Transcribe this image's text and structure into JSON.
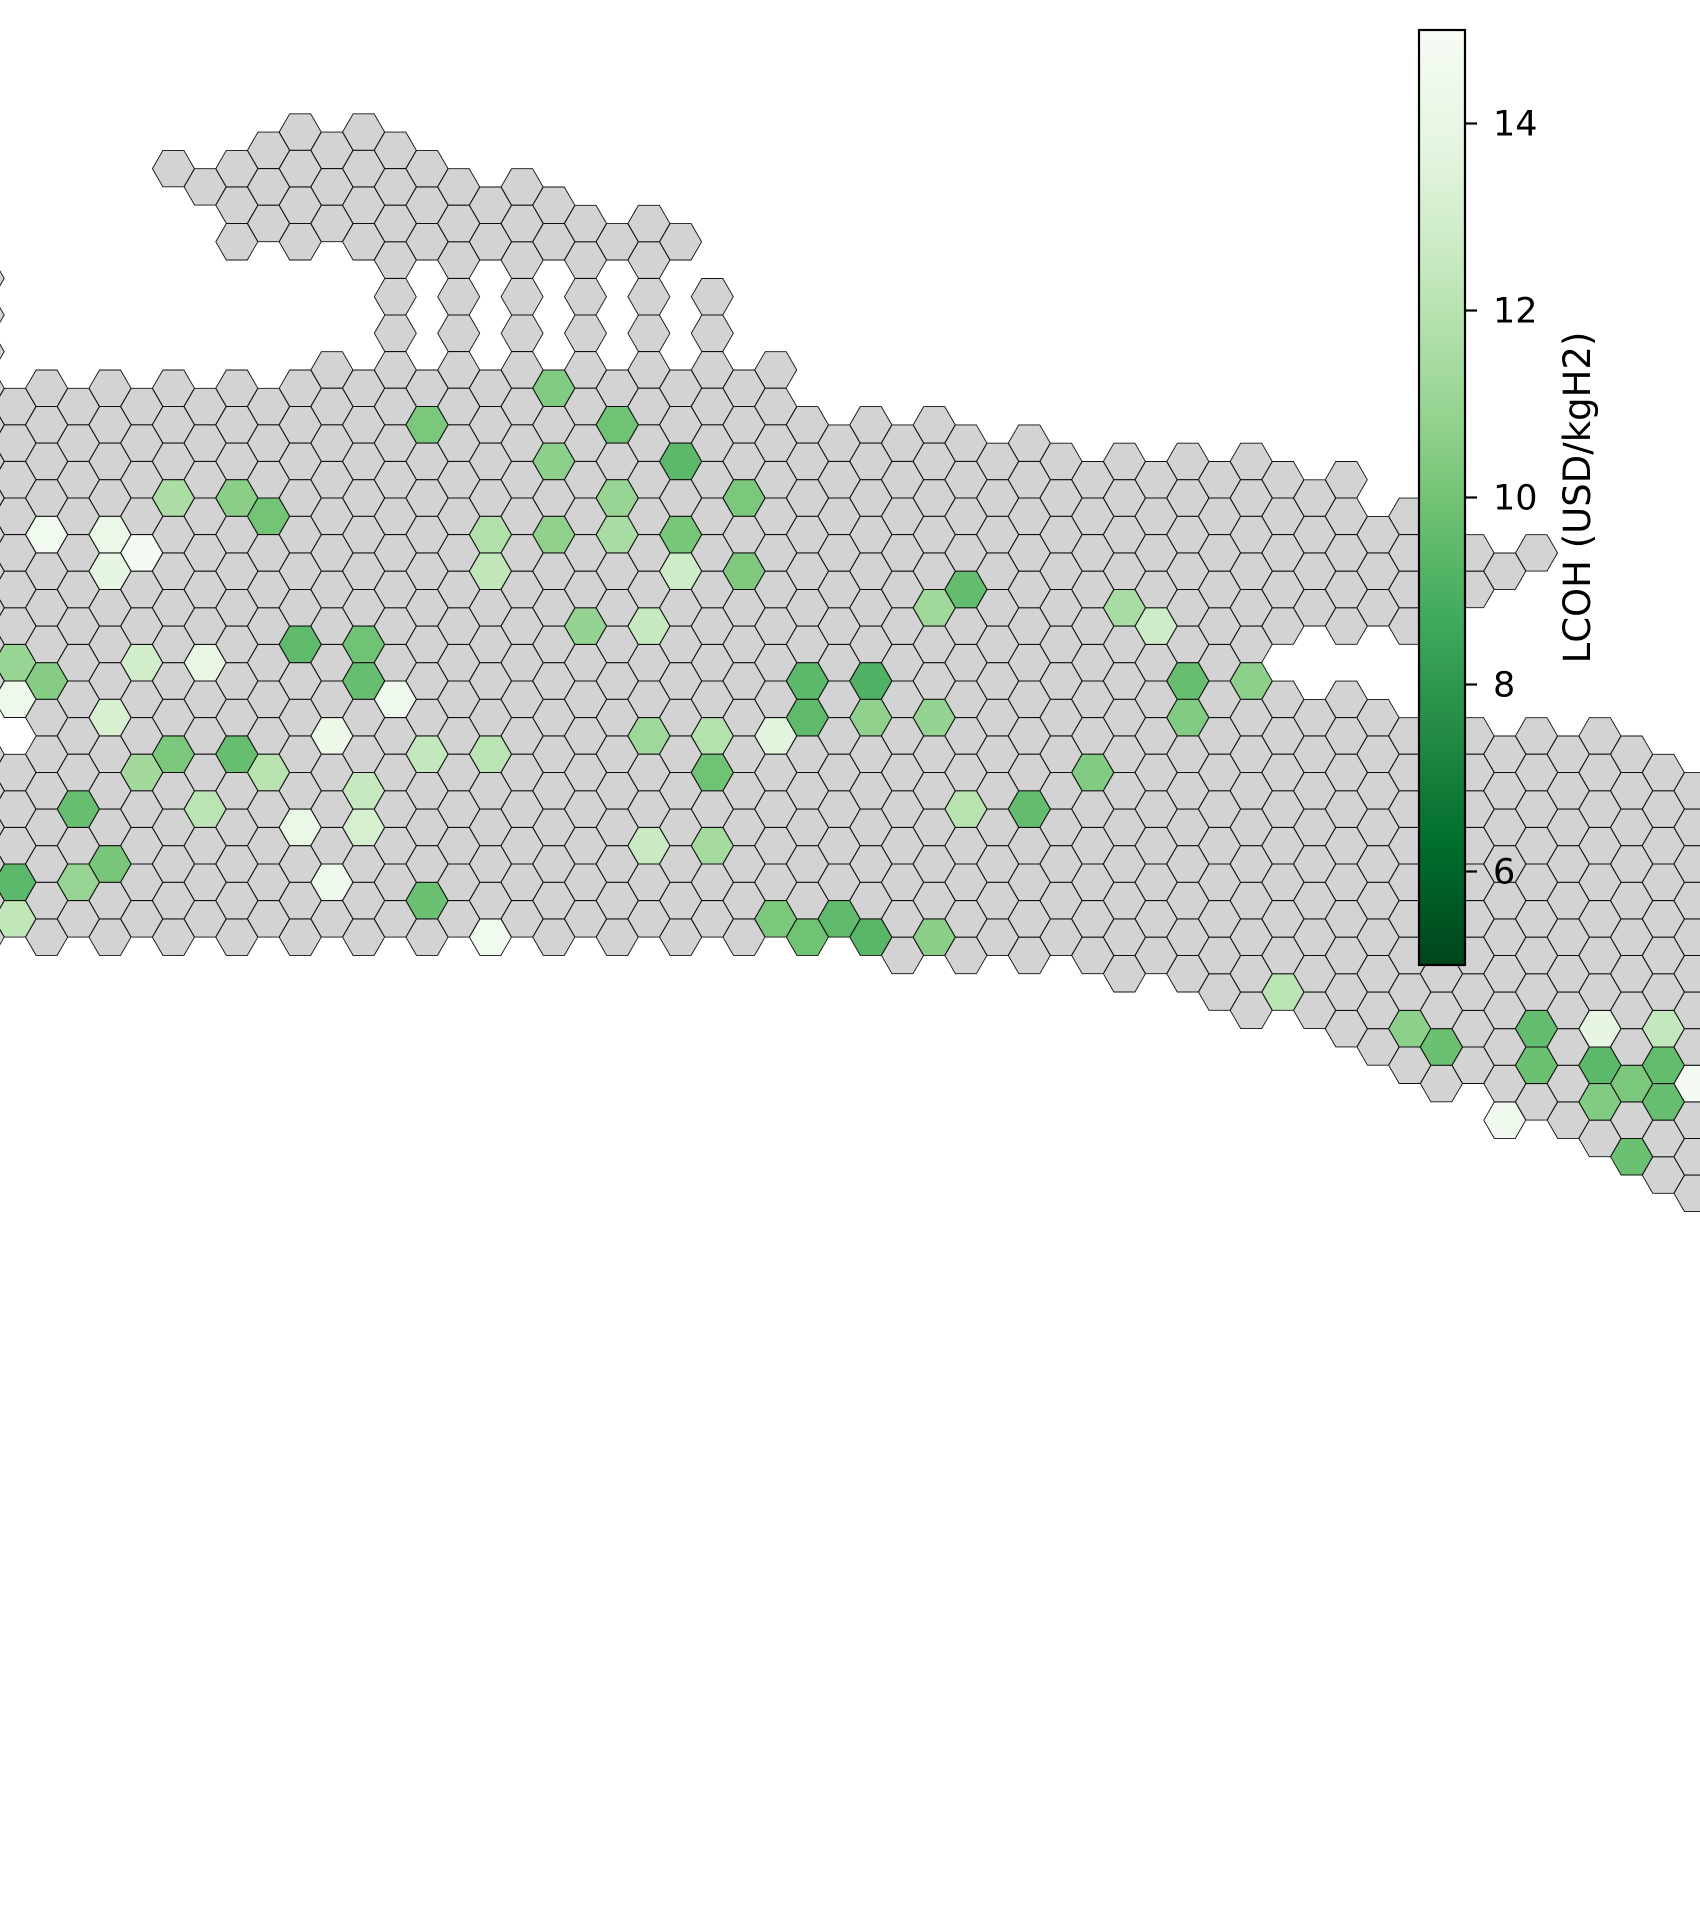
{
  "colors": {
    "no_data": "#d3d3d3",
    "cell_edge": "#111111",
    "colormap": [
      "#00441b",
      "#006d2c",
      "#238b45",
      "#41ab5d",
      "#74c476",
      "#a1d99b",
      "#c7e9c0",
      "#e5f5e0",
      "#f7fcf5"
    ]
  },
  "map": {
    "title": "",
    "shape": "hexagon-grid",
    "region_rows": [
      [
        3,
        4
      ],
      [
        2,
        4
      ],
      [
        1,
        5
      ],
      [
        1,
        6
      ],
      [
        2,
        7
      ],
      [
        2,
        8
      ],
      [
        2,
        9
      ],
      [
        4,
        8
      ],
      [
        -3,
        -2
      ],
      [
        4,
        9
      ],
      [
        -4,
        -2
      ],
      [
        4,
        9
      ],
      [
        -5,
        -2
      ],
      [
        3,
        10
      ],
      [
        -6,
        10
      ],
      [
        -7,
        10
      ],
      [
        -8,
        13
      ],
      [
        -8,
        14
      ],
      [
        -9,
        18
      ],
      [
        -9,
        19
      ],
      [
        -10,
        19
      ],
      [
        -10,
        20
      ],
      [
        -10,
        21
      ],
      [
        -9,
        22
      ],
      [
        -8,
        22
      ],
      [
        -8,
        21
      ],
      [
        -7,
        20
      ],
      [
        -6,
        20
      ],
      [
        -4,
        18
      ],
      [
        -3,
        17
      ],
      [
        -3,
        18
      ],
      [
        -2,
        19
      ],
      [
        -1,
        21
      ],
      [
        -1,
        23
      ],
      [
        -2,
        24
      ],
      [
        -2,
        25
      ],
      [
        -3,
        26
      ],
      [
        -3,
        27
      ],
      [
        -2,
        28
      ],
      [
        -2,
        28
      ],
      [
        -3,
        29
      ],
      [
        -4,
        30
      ],
      [
        -4,
        31
      ],
      [
        -6,
        32
      ],
      [
        -7,
        32
      ],
      [
        12,
        33
      ],
      [
        16,
        34
      ],
      [
        17,
        35
      ],
      [
        18,
        36
      ],
      [
        19,
        37
      ],
      [
        20,
        38
      ],
      [
        20,
        39
      ],
      [
        21,
        40
      ],
      [
        22,
        41
      ],
      [
        22,
        42
      ],
      [
        23,
        43
      ],
      [
        24,
        43
      ],
      [
        24,
        44
      ],
      [
        25,
        45
      ],
      [
        26,
        46
      ],
      [
        26,
        47
      ],
      [
        27,
        47
      ],
      [
        27,
        48
      ],
      [
        28,
        49
      ],
      [
        28,
        50
      ],
      [
        29,
        51
      ],
      [
        29,
        51
      ],
      [
        30,
        52
      ],
      [
        30,
        52
      ],
      [
        31,
        52
      ],
      [
        31,
        51
      ],
      [
        31,
        51
      ],
      [
        30,
        50
      ],
      [
        30,
        49
      ],
      [
        31,
        48
      ],
      [
        32,
        47
      ],
      [
        33,
        46
      ]
    ],
    "lcoh_cells": [
      [
        10,
        5,
        9.3
      ],
      [
        12,
        6,
        9.8
      ],
      [
        14,
        7,
        10.4
      ],
      [
        16,
        8,
        9.9
      ],
      [
        16,
        5,
        10.2
      ],
      [
        18,
        9,
        9.4
      ],
      [
        18,
        7,
        10.7
      ],
      [
        20,
        10,
        10.2
      ],
      [
        20,
        8,
        11.0
      ],
      [
        22,
        8,
        11.5
      ],
      [
        22,
        9,
        10.1
      ],
      [
        24,
        6,
        12.3
      ],
      [
        24,
        9,
        12.8
      ],
      [
        24,
        10,
        10.3
      ],
      [
        20,
        1,
        11.6
      ],
      [
        20,
        2,
        10.6
      ],
      [
        21,
        2,
        10.0
      ],
      [
        22,
        -1,
        14.6
      ],
      [
        22,
        0,
        14.2
      ],
      [
        23,
        0,
        14.8
      ],
      [
        24,
        0,
        13.9
      ],
      [
        22,
        6,
        11.8
      ],
      [
        22,
        7,
        10.8
      ],
      [
        25,
        -6,
        14.4
      ],
      [
        25,
        -5,
        14.0
      ],
      [
        26,
        -5,
        14.9
      ],
      [
        26,
        -3,
        13.0
      ],
      [
        27,
        -6,
        14.3
      ],
      [
        27,
        -5,
        14.7
      ],
      [
        25,
        13,
        9.6
      ],
      [
        26,
        13,
        11.2
      ],
      [
        26,
        16,
        11.5
      ],
      [
        27,
        16,
        12.8
      ],
      [
        27,
        7,
        10.9
      ],
      [
        27,
        8,
        12.5
      ],
      [
        28,
        -5,
        10.4
      ],
      [
        28,
        -3,
        9.8
      ],
      [
        28,
        3,
        9.5
      ],
      [
        28,
        4,
        9.9
      ],
      [
        29,
        -3,
        11.4
      ],
      [
        29,
        -2,
        11.0
      ],
      [
        29,
        0,
        12.9
      ],
      [
        29,
        1,
        14.0
      ],
      [
        30,
        -1,
        10.5
      ],
      [
        30,
        4,
        9.7
      ],
      [
        30,
        11,
        9.4
      ],
      [
        30,
        12,
        9.1
      ],
      [
        30,
        17,
        9.7
      ],
      [
        30,
        18,
        10.7
      ],
      [
        31,
        -3,
        9.9
      ],
      [
        31,
        -2,
        14.4
      ],
      [
        31,
        4,
        14.5
      ],
      [
        31,
        -8,
        10.0
      ],
      [
        32,
        -8,
        9.4
      ],
      [
        32,
        0,
        13.2
      ],
      [
        32,
        11,
        9.5
      ],
      [
        32,
        12,
        10.8
      ],
      [
        32,
        13,
        10.9
      ],
      [
        32,
        17,
        10.4
      ],
      [
        33,
        -6,
        12.3
      ],
      [
        33,
        -5,
        14.1
      ],
      [
        33,
        3,
        14.3
      ],
      [
        33,
        8,
        11.2
      ],
      [
        33,
        9,
        11.9
      ],
      [
        33,
        10,
        13.6
      ],
      [
        34,
        -4,
        13.3
      ],
      [
        34,
        1,
        10.2
      ],
      [
        34,
        2,
        9.7
      ],
      [
        34,
        5,
        12.4
      ],
      [
        34,
        6,
        12.1
      ],
      [
        35,
        -3,
        10.5
      ],
      [
        35,
        0,
        11.3
      ],
      [
        35,
        2,
        12.0
      ],
      [
        35,
        9,
        9.9
      ],
      [
        35,
        15,
        10.4
      ],
      [
        36,
        -7,
        12.2
      ],
      [
        36,
        -6,
        10.8
      ],
      [
        36,
        4,
        12.5
      ],
      [
        37,
        -1,
        9.7
      ],
      [
        37,
        1,
        12.1
      ],
      [
        37,
        13,
        12.0
      ],
      [
        37,
        14,
        9.6
      ],
      [
        38,
        3,
        14.2
      ],
      [
        38,
        4,
        13.1
      ],
      [
        39,
        -4,
        9.2
      ],
      [
        39,
        -3,
        11.5
      ],
      [
        39,
        8,
        12.6
      ],
      [
        39,
        9,
        11.4
      ],
      [
        40,
        -4,
        10.3
      ],
      [
        40,
        0,
        10.1
      ],
      [
        41,
        -2,
        9.4
      ],
      [
        41,
        -1,
        11.0
      ],
      [
        41,
        3,
        14.5
      ],
      [
        42,
        -5,
        11.9
      ],
      [
        42,
        5,
        9.8
      ],
      [
        43,
        -3,
        10.0
      ],
      [
        43,
        -2,
        12.3
      ],
      [
        43,
        10,
        10.2
      ],
      [
        43,
        11,
        9.5
      ],
      [
        44,
        -4,
        10.7
      ],
      [
        44,
        6,
        14.6
      ],
      [
        44,
        11,
        9.9
      ],
      [
        44,
        12,
        9.3
      ],
      [
        44,
        13,
        10.6
      ],
      [
        45,
        11,
        9.7
      ],
      [
        46,
        -6,
        9.8
      ],
      [
        46,
        -5,
        9.4
      ],
      [
        46,
        0,
        10.6
      ],
      [
        46,
        4,
        11.4
      ],
      [
        46,
        11,
        9.3
      ],
      [
        46,
        12,
        10.4
      ],
      [
        47,
        -6,
        9.2
      ],
      [
        47,
        12,
        9.6
      ],
      [
        47,
        13,
        10.2
      ],
      [
        47,
        18,
        12.1
      ],
      [
        48,
        -6,
        10.8
      ],
      [
        48,
        -2,
        13.6
      ],
      [
        48,
        0,
        12.4
      ],
      [
        48,
        5,
        11.6
      ],
      [
        48,
        7,
        10.5
      ],
      [
        49,
        -5,
        9.7
      ],
      [
        49,
        -3,
        9.6
      ],
      [
        49,
        -2,
        12.2
      ],
      [
        49,
        0,
        14.3
      ],
      [
        49,
        3,
        12.7
      ],
      [
        49,
        4,
        11.0
      ],
      [
        49,
        14,
        14.4
      ],
      [
        49,
        20,
        10.7
      ],
      [
        49,
        22,
        9.6
      ],
      [
        49,
        23,
        13.9
      ],
      [
        49,
        24,
        12.4
      ],
      [
        50,
        -3,
        9.3
      ],
      [
        50,
        4,
        14.8
      ],
      [
        50,
        11,
        11.3
      ],
      [
        50,
        12,
        10.4
      ],
      [
        50,
        13,
        14.8
      ],
      [
        50,
        17,
        14.5
      ],
      [
        50,
        21,
        9.8
      ],
      [
        51,
        -2,
        14.2
      ],
      [
        51,
        -1,
        10.7
      ],
      [
        51,
        1,
        14.6
      ],
      [
        51,
        6,
        9.7
      ],
      [
        51,
        12,
        10.9
      ],
      [
        51,
        22,
        9.8
      ],
      [
        51,
        23,
        9.4
      ],
      [
        51,
        24,
        9.6
      ],
      [
        52,
        -3,
        10.5
      ],
      [
        52,
        0,
        9.2
      ],
      [
        52,
        5,
        9.3
      ],
      [
        52,
        6,
        11.2
      ],
      [
        52,
        7,
        13.2
      ],
      [
        52,
        8,
        10.4
      ],
      [
        52,
        17,
        10.1
      ],
      [
        52,
        24,
        10.2
      ],
      [
        52,
        25,
        14.8
      ],
      [
        53,
        -1,
        9.6
      ],
      [
        53,
        0,
        9.3
      ],
      [
        53,
        4,
        11.7
      ],
      [
        53,
        5,
        11.3
      ],
      [
        53,
        6,
        14.6
      ],
      [
        53,
        23,
        10.4
      ],
      [
        53,
        24,
        9.7
      ],
      [
        53,
        25,
        9.3
      ],
      [
        54,
        -2,
        9.8
      ],
      [
        54,
        -1,
        10.8
      ],
      [
        54,
        22,
        14.5
      ],
      [
        55,
        1,
        11.6
      ],
      [
        55,
        13,
        9.4
      ],
      [
        55,
        25,
        10.1
      ],
      [
        55,
        26,
        9.6
      ],
      [
        56,
        4,
        12.9
      ],
      [
        56,
        5,
        9.5
      ],
      [
        56,
        13,
        14.4
      ],
      [
        56,
        24,
        9.8
      ],
      [
        57,
        25,
        14.4
      ],
      [
        58,
        22,
        9.8
      ],
      [
        58,
        26,
        9.2
      ],
      [
        58,
        27,
        13.5
      ],
      [
        59,
        25,
        14.8
      ],
      [
        59,
        26,
        9.4
      ],
      [
        60,
        28,
        10.8
      ],
      [
        60,
        29,
        9.5
      ],
      [
        60,
        33,
        9.7
      ],
      [
        61,
        27,
        10.1
      ],
      [
        61,
        28,
        12.3
      ],
      [
        62,
        26,
        14.8
      ],
      [
        62,
        34,
        14.5
      ],
      [
        63,
        25,
        14.1
      ],
      [
        63,
        27,
        9.5
      ],
      [
        63,
        31,
        10.6
      ],
      [
        64,
        28,
        9.3
      ],
      [
        64,
        33,
        9.8
      ],
      [
        65,
        27,
        12.6
      ],
      [
        65,
        29,
        14.1
      ],
      [
        65,
        35,
        11.3
      ],
      [
        66,
        28,
        14.3
      ],
      [
        66,
        30,
        10.1
      ],
      [
        66,
        32,
        9.7
      ],
      [
        66,
        34,
        9.7
      ],
      [
        66,
        35,
        9.3
      ],
      [
        67,
        29,
        11.0
      ],
      [
        67,
        31,
        10.8
      ],
      [
        67,
        33,
        14.6
      ],
      [
        67,
        35,
        10.3
      ],
      [
        68,
        29,
        9.3
      ],
      [
        68,
        30,
        14.6
      ],
      [
        68,
        31,
        10.5
      ],
      [
        68,
        33,
        9.5
      ],
      [
        69,
        30,
        14.0
      ],
      [
        69,
        32,
        9.8
      ],
      [
        69,
        35,
        13.9
      ],
      [
        70,
        34,
        11.5
      ],
      [
        70,
        38,
        11.8
      ],
      [
        71,
        29,
        10.2
      ],
      [
        71,
        32,
        9.6
      ],
      [
        71,
        33,
        9.3
      ],
      [
        71,
        34,
        12.4
      ],
      [
        72,
        29,
        10.5
      ],
      [
        72,
        30,
        9.8
      ],
      [
        72,
        35,
        9.4
      ],
      [
        72,
        36,
        14.4
      ],
      [
        72,
        37,
        10.5
      ],
      [
        72,
        38,
        12.6
      ],
      [
        73,
        29,
        9.4
      ],
      [
        73,
        31,
        10.1
      ],
      [
        73,
        33,
        14.2
      ],
      [
        73,
        34,
        10.2
      ],
      [
        73,
        37,
        11.2
      ],
      [
        74,
        30,
        10.5
      ],
      [
        74,
        34,
        14.5
      ],
      [
        74,
        35,
        12.3
      ],
      [
        74,
        36,
        9.5
      ],
      [
        74,
        37,
        14.5
      ],
      [
        74,
        38,
        9.6
      ],
      [
        75,
        30,
        14.1
      ],
      [
        75,
        32,
        9.5
      ],
      [
        75,
        34,
        9.8
      ],
      [
        75,
        35,
        9.4
      ],
      [
        75,
        36,
        9.4
      ],
      [
        75,
        37,
        12.1
      ],
      [
        75,
        41,
        12.2
      ],
      [
        76,
        32,
        9.3
      ],
      [
        76,
        33,
        9.9
      ],
      [
        76,
        36,
        10.8
      ],
      [
        76,
        37,
        9.5
      ],
      [
        77,
        32,
        10.4
      ],
      [
        77,
        33,
        14.1
      ],
      [
        77,
        36,
        10.6
      ],
      [
        77,
        37,
        9.4
      ],
      [
        78,
        33,
        9.7
      ],
      [
        78,
        38,
        9.1
      ],
      [
        78,
        42,
        9.9
      ],
      [
        79,
        31,
        10.3
      ],
      [
        79,
        33,
        10.3
      ],
      [
        80,
        31,
        10.7
      ],
      [
        80,
        35,
        14.6
      ],
      [
        80,
        41,
        14.3
      ],
      [
        81,
        34,
        9.2
      ],
      [
        81,
        39,
        14.7
      ],
      [
        81,
        42,
        13.9
      ],
      [
        82,
        30,
        12.7
      ],
      [
        83,
        31,
        13.5
      ],
      [
        84,
        30,
        14.7
      ],
      [
        84,
        33,
        10.5
      ],
      [
        85,
        34,
        9.5
      ],
      [
        85,
        29,
        11.5
      ],
      [
        86,
        33,
        10.2
      ],
      [
        86,
        34,
        9.7
      ],
      [
        87,
        34,
        9.1
      ],
      [
        87,
        35,
        9.4
      ],
      [
        88,
        35,
        10.8
      ],
      [
        88,
        36,
        9.9
      ],
      [
        89,
        36,
        11.2
      ],
      [
        89,
        37,
        9.4
      ]
    ]
  },
  "colorbar": {
    "label": "LCOH (USD/kgH2)",
    "min": 5.0,
    "max": 15.0,
    "ticks": [
      6,
      8,
      10,
      12,
      14
    ],
    "tick_labels": [
      "6",
      "8",
      "10",
      "12",
      "14"
    ]
  }
}
